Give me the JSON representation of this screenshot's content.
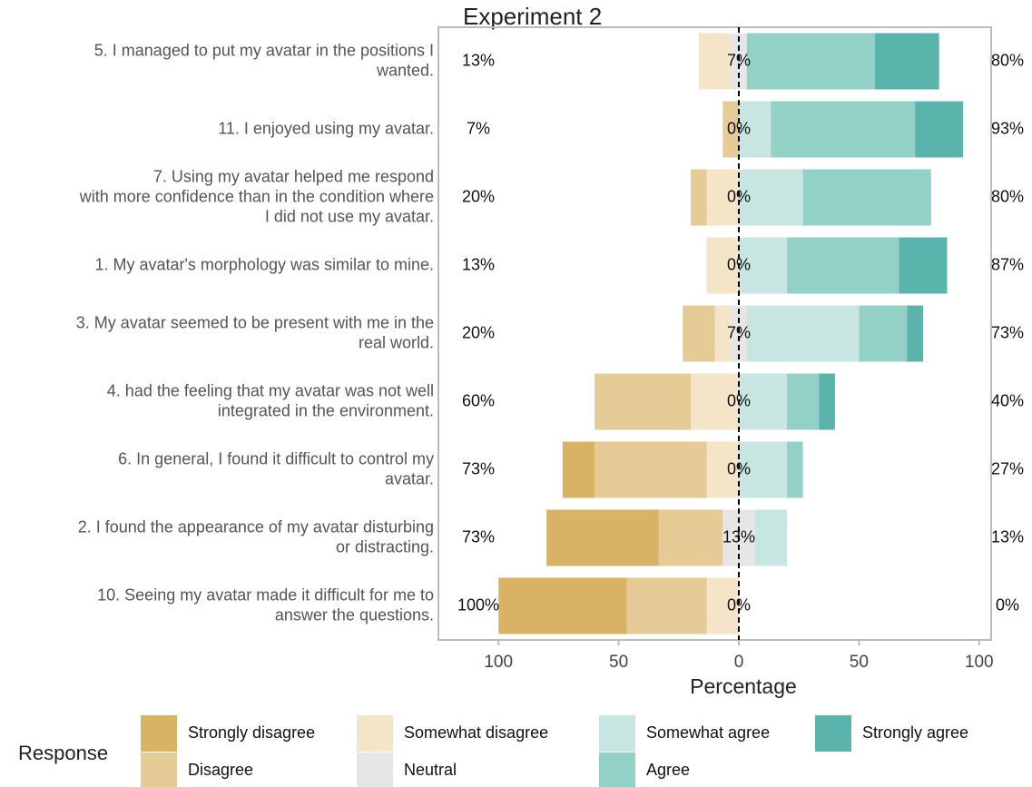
{
  "chart_data": {
    "type": "diverging_bar",
    "title": "Experiment 2",
    "x_label": "Percentage",
    "legend_title": "Response",
    "categories": [
      [
        "5. I managed to put my avatar in the positions I",
        "wanted."
      ],
      [
        "11. I enjoyed using my avatar."
      ],
      [
        "7. Using my avatar helped me respond",
        "with more confidence than in the condition where",
        "I did not use my avatar."
      ],
      [
        "1. My avatar's morphology was similar to mine."
      ],
      [
        "3. My avatar seemed to be present with me in the",
        "real world."
      ],
      [
        "4. had the feeling that my avatar was not well",
        "integrated in the environment."
      ],
      [
        "6. In general, I found it difficult to control my",
        "avatar."
      ],
      [
        "2. I found the appearance of my avatar disturbing",
        "or distracting."
      ],
      [
        "10. Seeing my avatar made it difficult for me to",
        "answer the questions."
      ]
    ],
    "series": [
      {
        "name": "Strongly disagree",
        "color": "#d9b365",
        "side": "left",
        "values": [
          0,
          0,
          0,
          0,
          0,
          0,
          13.33,
          46.67,
          53.33
        ]
      },
      {
        "name": "Disagree",
        "color": "#e5cb95",
        "side": "left",
        "values": [
          0,
          6.67,
          6.67,
          0,
          13.33,
          40,
          46.67,
          26.67,
          33.33
        ]
      },
      {
        "name": "Somewhat disagree",
        "color": "#f4e5c9",
        "side": "left",
        "values": [
          13.33,
          0,
          13.33,
          13.33,
          6.67,
          20,
          13.33,
          0,
          13.33
        ]
      },
      {
        "name": "Neutral",
        "color": "#e6e6e6",
        "side": "center",
        "values": [
          6.67,
          0,
          0,
          0,
          6.67,
          0,
          0,
          13.33,
          0
        ]
      },
      {
        "name": "Somewhat agree",
        "color": "#c7e6e2",
        "side": "right",
        "values": [
          0,
          13.33,
          26.67,
          20,
          46.67,
          20,
          20,
          13.33,
          0
        ]
      },
      {
        "name": "Agree",
        "color": "#93d0c6",
        "side": "right",
        "values": [
          53.33,
          60,
          53.33,
          46.67,
          20,
          13.33,
          6.67,
          0,
          0
        ]
      },
      {
        "name": "Strongly agree",
        "color": "#5ab4ac",
        "side": "right",
        "values": [
          26.67,
          20,
          0,
          20,
          6.67,
          6.67,
          0,
          0,
          0
        ]
      }
    ],
    "left_labels": [
      "13%",
      "7%",
      "20%",
      "13%",
      "20%",
      "60%",
      "73%",
      "73%",
      "100%"
    ],
    "center_labels": [
      "7%",
      "0%",
      "0%",
      "0%",
      "7%",
      "0%",
      "0%",
      "13%",
      "0%"
    ],
    "right_labels": [
      "80%",
      "93%",
      "80%",
      "87%",
      "73%",
      "40%",
      "27%",
      "13%",
      "0%"
    ],
    "xlim": [
      -125,
      105
    ],
    "xticks": [
      {
        "value": -100,
        "label": "100"
      },
      {
        "value": -50,
        "label": "50"
      },
      0,
      50,
      100
    ]
  }
}
